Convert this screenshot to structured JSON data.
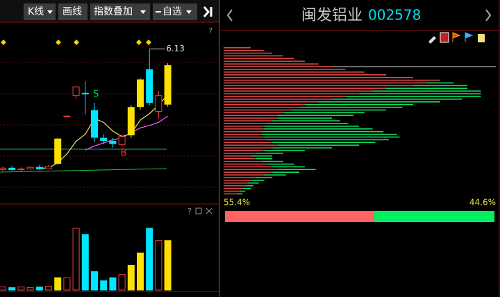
{
  "toolbar": {
    "buttons": [
      "K线",
      "画线",
      "指数叠加",
      "自选"
    ],
    "help": "?"
  },
  "stock": {
    "name": "闽发铝业",
    "code": "002578"
  },
  "kline": {
    "ylim": [
      4.2,
      6.4
    ],
    "candles": [
      {
        "o": 4.6,
        "h": 4.64,
        "l": 4.58,
        "c": 4.62
      },
      {
        "o": 4.62,
        "h": 4.65,
        "l": 4.59,
        "c": 4.6
      },
      {
        "o": 4.6,
        "h": 4.63,
        "l": 4.57,
        "c": 4.61
      },
      {
        "o": 4.61,
        "h": 4.64,
        "l": 4.6,
        "c": 4.63
      },
      {
        "o": 4.63,
        "h": 4.66,
        "l": 4.6,
        "c": 4.61
      },
      {
        "o": 4.61,
        "h": 4.66,
        "l": 4.6,
        "c": 4.64
      },
      {
        "o": 4.68,
        "h": 5.0,
        "l": 4.66,
        "c": 4.99
      },
      {
        "o": 5.28,
        "h": 5.29,
        "l": 5.27,
        "c": 5.28
      },
      {
        "o": 5.54,
        "h": 5.66,
        "l": 5.5,
        "c": 5.65
      },
      {
        "o": 5.57,
        "h": 5.72,
        "l": 5.3,
        "c": 5.56
      },
      {
        "o": 5.35,
        "h": 5.45,
        "l": 4.95,
        "c": 5.01
      },
      {
        "o": 5.0,
        "h": 5.05,
        "l": 4.93,
        "c": 4.97
      },
      {
        "o": 4.96,
        "h": 5.0,
        "l": 4.88,
        "c": 4.93
      },
      {
        "o": 4.92,
        "h": 5.05,
        "l": 4.9,
        "c": 5.02
      },
      {
        "o": 5.04,
        "h": 5.42,
        "l": 5.0,
        "c": 5.39
      },
      {
        "o": 5.4,
        "h": 5.76,
        "l": 5.36,
        "c": 5.74
      },
      {
        "o": 5.87,
        "h": 6.13,
        "l": 5.42,
        "c": 5.45
      },
      {
        "o": 5.34,
        "h": 5.6,
        "l": 5.25,
        "c": 5.54
      },
      {
        "o": 5.43,
        "h": 5.95,
        "l": 5.4,
        "c": 5.92
      }
    ],
    "ma": [
      {
        "color": "#e8e870",
        "values": [
          null,
          null,
          null,
          null,
          4.62,
          4.62,
          4.69,
          4.8,
          4.96,
          5.05,
          5.25,
          5.2,
          5.09,
          5.02,
          5.06,
          5.23,
          5.31,
          5.42,
          5.55
        ]
      },
      {
        "color": "#ff60ff",
        "values": [
          null,
          null,
          null,
          null,
          null,
          null,
          null,
          null,
          null,
          4.85,
          4.9,
          4.94,
          4.98,
          5.0,
          5.07,
          5.13,
          5.16,
          5.2,
          5.28
        ]
      }
    ],
    "signals": [
      {
        "text": "S",
        "index": 10,
        "color": "#00e060"
      },
      {
        "text": "B",
        "index": 13,
        "color": "#ff3030"
      }
    ],
    "volume": {
      "ylim": [
        0,
        110
      ],
      "values": [
        5,
        4,
        5,
        4,
        5,
        6,
        20,
        20,
        100,
        90,
        30,
        15,
        20,
        25,
        40,
        60,
        100,
        80,
        80
      ]
    },
    "colors": {
      "up": "#ff3c3c",
      "down": "#00e5ff",
      "strong": "#ffe000"
    }
  },
  "volume_panel": {
    "help": "?"
  },
  "chips": {
    "xlim": [
      0,
      100
    ],
    "red": [
      10,
      15,
      18,
      22,
      26,
      30,
      35,
      40,
      45,
      52,
      60,
      70,
      80,
      75,
      70,
      60,
      55,
      50,
      45,
      40,
      35,
      30,
      28,
      25,
      22,
      20,
      20,
      18,
      16,
      15,
      15,
      14,
      14,
      15,
      16,
      18,
      20,
      18,
      15,
      12,
      10,
      12,
      14,
      16,
      18,
      20,
      18,
      15,
      12,
      10,
      9,
      8,
      7,
      6,
      5
    ],
    "green": [
      0,
      0,
      0,
      0,
      0,
      0,
      0,
      0,
      0,
      0,
      0,
      0,
      0,
      10,
      20,
      30,
      40,
      45,
      50,
      48,
      45,
      40,
      38,
      35,
      30,
      28,
      20,
      25,
      30,
      35,
      40,
      45,
      50,
      50,
      45,
      38,
      30,
      22,
      15,
      10,
      8,
      6,
      8,
      10,
      12,
      14,
      10,
      8,
      6,
      5,
      4,
      3,
      3,
      2,
      2
    ],
    "red_color": "#e04848",
    "green_color": "#10e060",
    "ratio": {
      "values": [
        55.4,
        44.6
      ],
      "value_labels": [
        "55.4%",
        "44.6%"
      ],
      "colors": [
        "#ff6464",
        "#00f060"
      ]
    }
  }
}
